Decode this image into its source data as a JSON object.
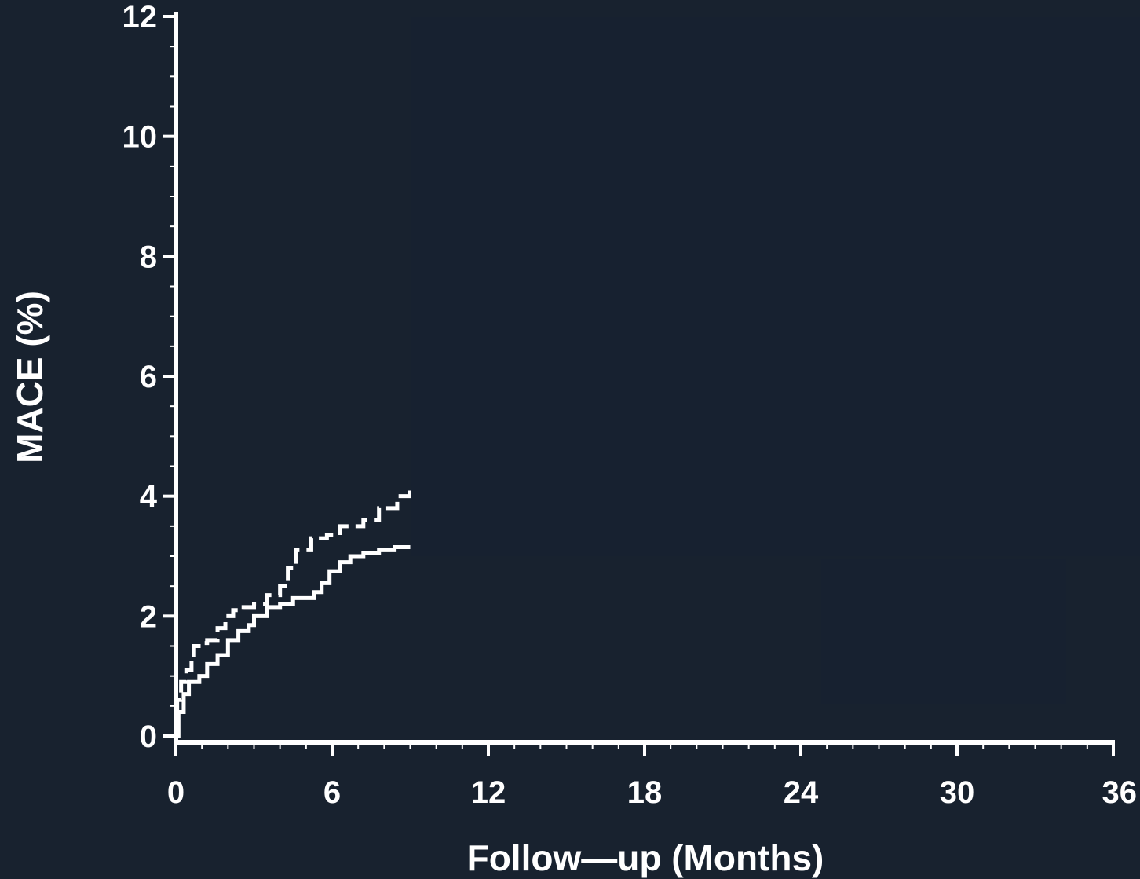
{
  "chart_data": {
    "type": "line",
    "xlabel": "Follow—up  (Months)",
    "ylabel": "MACE  (%)",
    "xlim": [
      0,
      36
    ],
    "ylim": [
      0,
      12
    ],
    "x_ticks": [
      "0",
      "6",
      "12",
      "18",
      "24",
      "30",
      "36"
    ],
    "y_ticks": [
      "0",
      "2",
      "4",
      "6",
      "8",
      "10",
      "12"
    ],
    "grid": false,
    "legend": "none",
    "colors": {
      "background": "#18222f",
      "masked_region": "#172130",
      "axis": "#ffffff",
      "series": "#ffffff"
    },
    "series": [
      {
        "style": "dashed",
        "points": [
          [
            0,
            0
          ],
          [
            0.05,
            0.6
          ],
          [
            0.2,
            0.9
          ],
          [
            0.4,
            1.1
          ],
          [
            0.6,
            1.3
          ],
          [
            0.7,
            1.5
          ],
          [
            1.0,
            1.55
          ],
          [
            1.2,
            1.6
          ],
          [
            1.6,
            1.8
          ],
          [
            1.9,
            2.0
          ],
          [
            2.2,
            2.1
          ],
          [
            2.6,
            2.15
          ],
          [
            3.0,
            2.2
          ],
          [
            3.5,
            2.35
          ],
          [
            4.0,
            2.5
          ],
          [
            4.3,
            2.8
          ],
          [
            4.6,
            3.1
          ],
          [
            5.2,
            3.3
          ],
          [
            5.8,
            3.35
          ],
          [
            6.3,
            3.5
          ],
          [
            7.2,
            3.6
          ],
          [
            7.8,
            3.8
          ],
          [
            8.5,
            4.0
          ],
          [
            9.0,
            4.1
          ]
        ]
      },
      {
        "style": "solid",
        "points": [
          [
            0,
            0
          ],
          [
            0.1,
            0.4
          ],
          [
            0.3,
            0.7
          ],
          [
            0.5,
            0.9
          ],
          [
            0.9,
            1.0
          ],
          [
            1.2,
            1.2
          ],
          [
            1.6,
            1.35
          ],
          [
            2.0,
            1.6
          ],
          [
            2.4,
            1.75
          ],
          [
            2.8,
            1.85
          ],
          [
            3.0,
            2.0
          ],
          [
            3.5,
            2.15
          ],
          [
            4.0,
            2.2
          ],
          [
            4.5,
            2.3
          ],
          [
            5.0,
            2.3
          ],
          [
            5.3,
            2.4
          ],
          [
            5.6,
            2.55
          ],
          [
            5.9,
            2.75
          ],
          [
            6.3,
            2.9
          ],
          [
            6.7,
            3.0
          ],
          [
            7.2,
            3.05
          ],
          [
            7.8,
            3.1
          ],
          [
            8.4,
            3.15
          ],
          [
            9.0,
            3.15
          ]
        ]
      }
    ]
  }
}
